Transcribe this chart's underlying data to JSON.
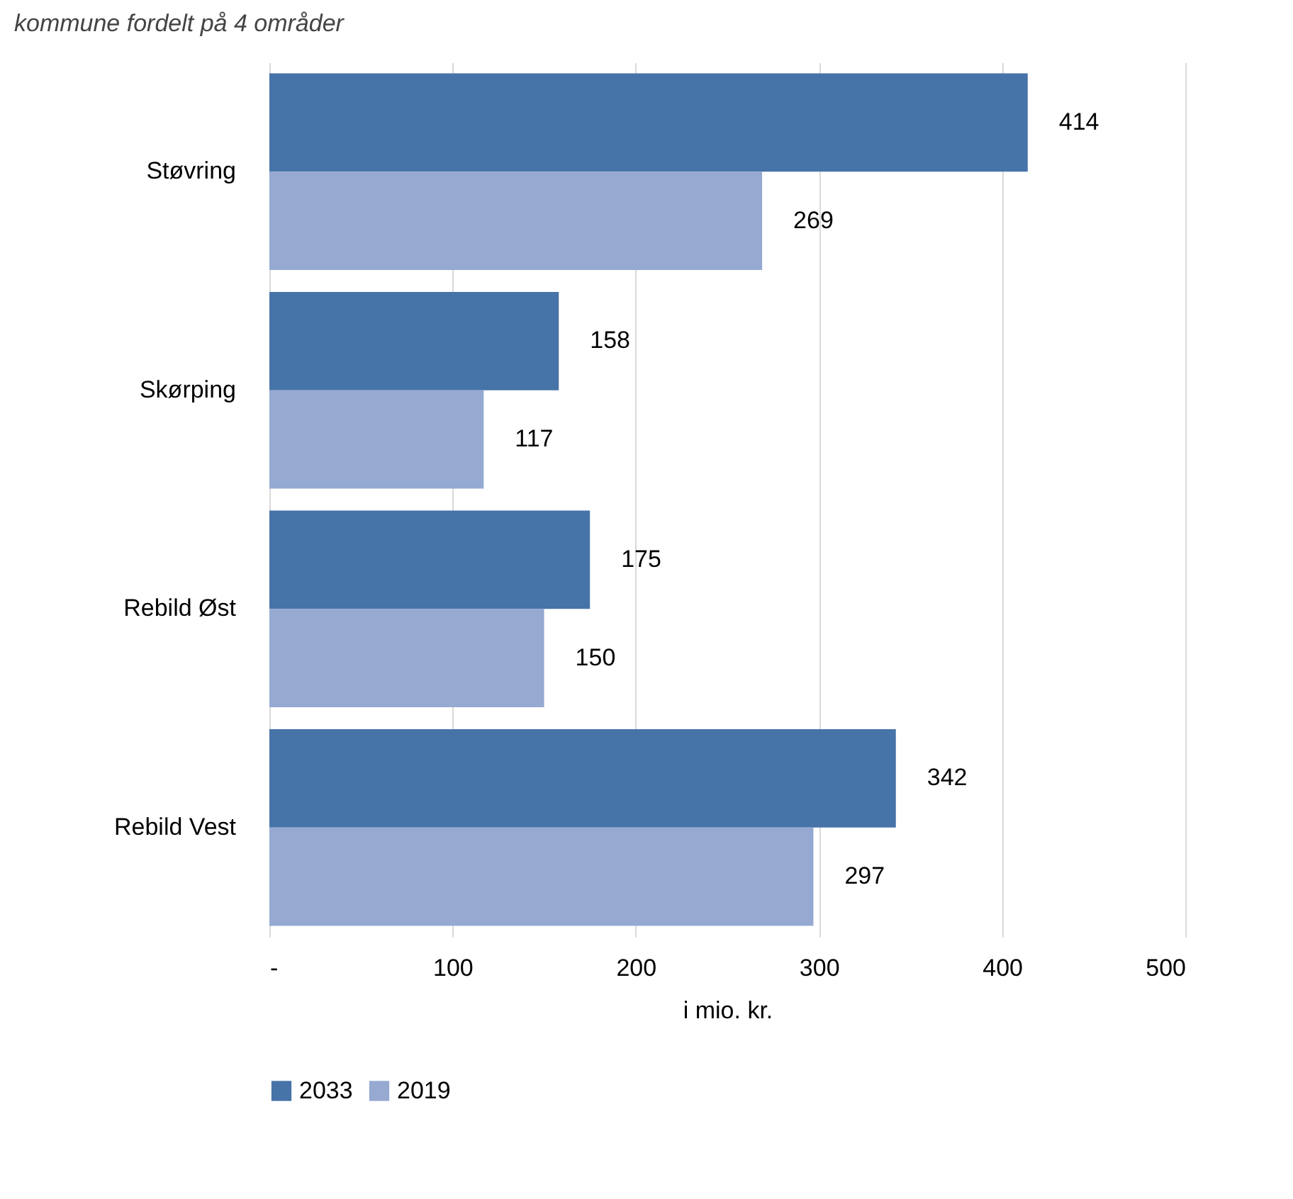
{
  "chart_data": {
    "type": "bar",
    "orientation": "horizontal",
    "title": "kommune fordelt på 4 områder",
    "xlabel": "i mio. kr.",
    "categories": [
      "Støvring",
      "Skørping",
      "Rebild Øst",
      "Rebild Vest"
    ],
    "series": [
      {
        "name": "2033",
        "color": "#4673a8",
        "values": [
          414,
          158,
          175,
          342
        ]
      },
      {
        "name": "2019",
        "color": "#95a9d1",
        "values": [
          269,
          117,
          150,
          297
        ]
      }
    ],
    "xlim": [
      0,
      500
    ],
    "xticks": [
      {
        "value": 0,
        "label": "-"
      },
      100,
      200,
      300,
      400,
      500
    ],
    "grid": "x",
    "legend": "bottom",
    "data_labels": true
  }
}
